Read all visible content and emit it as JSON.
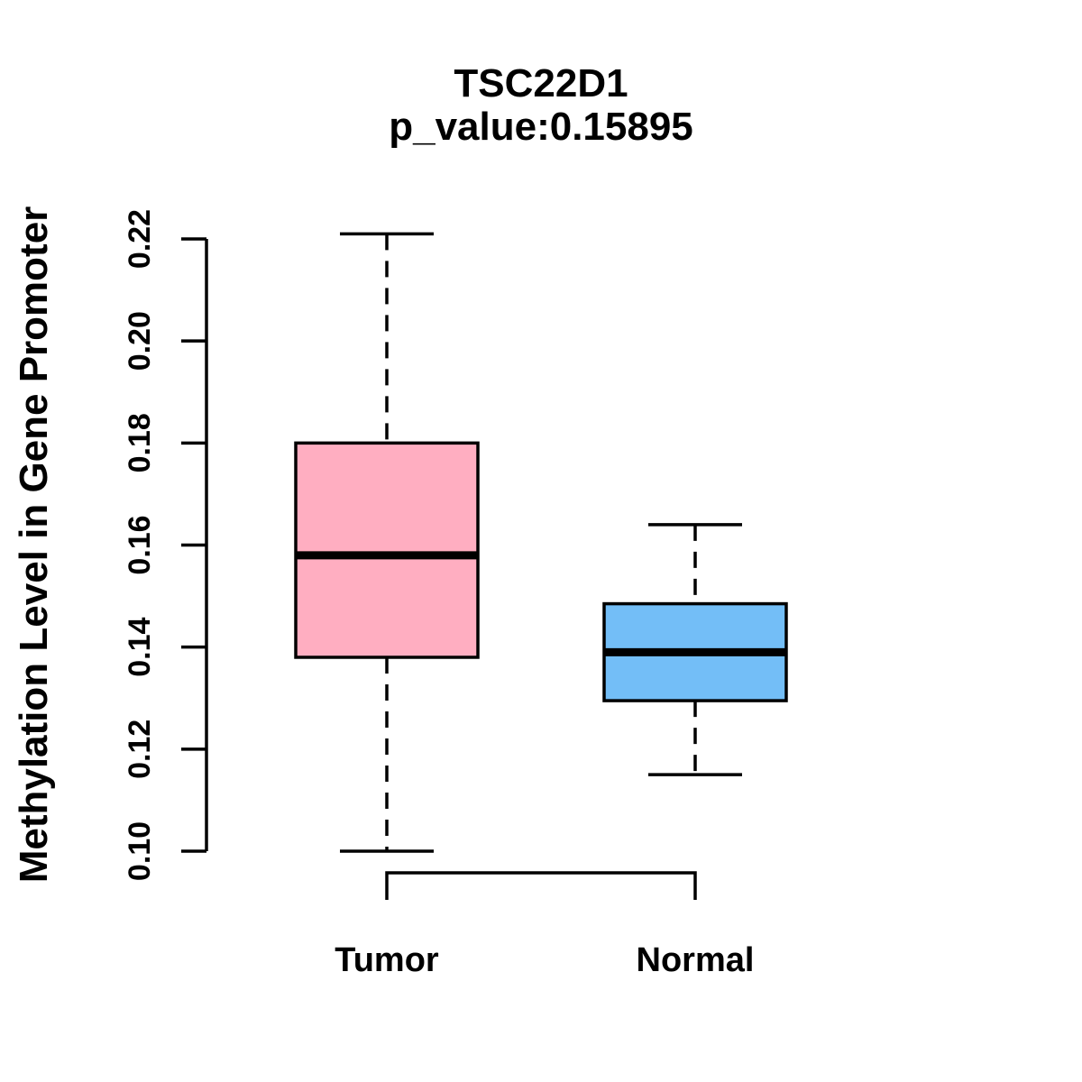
{
  "chart_data": {
    "type": "boxplot",
    "title": "TSC22D1",
    "subtitle": "p_value:0.15895",
    "ylabel": "Methylation Level in Gene Promoter",
    "xlabel": "",
    "ylim": [
      0.1,
      0.22
    ],
    "grid": false,
    "legend": "none",
    "y_ticks": [
      {
        "value": 0.1,
        "label": "0.10"
      },
      {
        "value": 0.12,
        "label": "0.12"
      },
      {
        "value": 0.14,
        "label": "0.14"
      },
      {
        "value": 0.16,
        "label": "0.16"
      },
      {
        "value": 0.18,
        "label": "0.18"
      },
      {
        "value": 0.2,
        "label": "0.20"
      },
      {
        "value": 0.22,
        "label": "0.22"
      }
    ],
    "groups": [
      {
        "label": "Tumor",
        "fill_color": "#FFAEC1",
        "whisker_low": 0.1,
        "q1": 0.138,
        "median": 0.158,
        "q3": 0.18,
        "whisker_high": 0.221
      },
      {
        "label": "Normal",
        "fill_color": "#73BEF7",
        "whisker_low": 0.115,
        "q1": 0.1295,
        "median": 0.139,
        "q3": 0.1485,
        "whisker_high": 0.164
      }
    ]
  },
  "colors": {
    "stroke": "#000000",
    "background": "#FFFFFF"
  }
}
